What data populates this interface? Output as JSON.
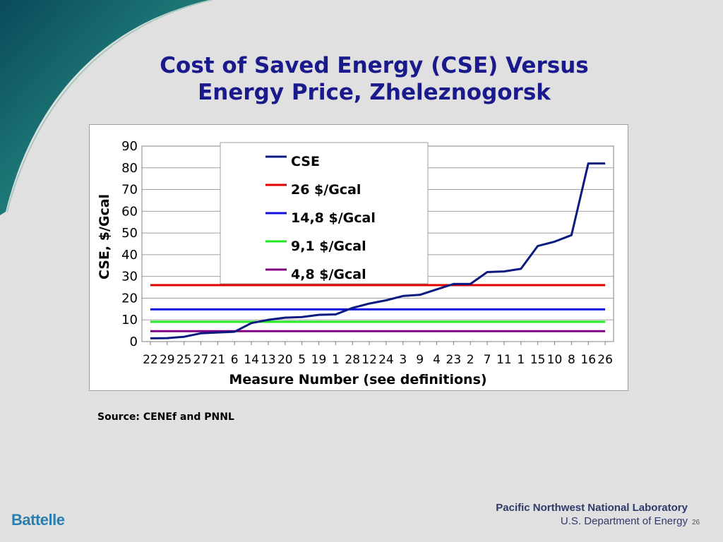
{
  "slide": {
    "title_line1": "Cost of Saved Energy (CSE) Versus",
    "title_line2": "Energy Price, Zheleznogorsk",
    "source": "Source: CENEf and PNNL",
    "logo_text": "Battelle",
    "lab_name": "Pacific Northwest National Laboratory",
    "department": "U.S. Department of Energy",
    "page_number": "26"
  },
  "colors": {
    "title": "#1a1a8c",
    "swoosh_dark": "#0a5a6a",
    "swoosh_light": "#3a9a8a",
    "background": "#e0e0e0"
  },
  "chart_data": {
    "type": "line",
    "title": "",
    "xlabel": "Measure Number (see definitions)",
    "ylabel": "CSE, $/Gcal",
    "ylim": [
      0,
      90
    ],
    "yticks": [
      "0",
      "10",
      "20",
      "30",
      "40",
      "50",
      "60",
      "70",
      "80",
      "90"
    ],
    "grid": true,
    "legend_position": "top-center",
    "categories": [
      "22",
      "29",
      "25",
      "27",
      "21",
      "6",
      "14",
      "13",
      "20",
      "5",
      "19",
      "1",
      "28",
      "12",
      "24",
      "3",
      "9",
      "4",
      "23",
      "2",
      "7",
      "11",
      "1",
      "15",
      "10",
      "8",
      "16",
      "26"
    ],
    "series": [
      {
        "name": "CSE",
        "color": "#0a1a80",
        "values": [
          1.5,
          1.6,
          2.2,
          3.8,
          4.2,
          4.5,
          8.5,
          10,
          11,
          11.3,
          12.3,
          12.5,
          15.5,
          17.5,
          19,
          21,
          21.5,
          24,
          26.5,
          26.5,
          32,
          32.3,
          33.5,
          44,
          46,
          49,
          82,
          82
        ]
      },
      {
        "name": "26 $/Gcal",
        "color": "#e00000",
        "values": [
          26,
          26,
          26,
          26,
          26,
          26,
          26,
          26,
          26,
          26,
          26,
          26,
          26,
          26,
          26,
          26,
          26,
          26,
          26,
          26,
          26,
          26,
          26,
          26,
          26,
          26,
          26,
          26
        ]
      },
      {
        "name": "14,8 $/Gcal",
        "color": "#1010e0",
        "values": [
          14.8,
          14.8,
          14.8,
          14.8,
          14.8,
          14.8,
          14.8,
          14.8,
          14.8,
          14.8,
          14.8,
          14.8,
          14.8,
          14.8,
          14.8,
          14.8,
          14.8,
          14.8,
          14.8,
          14.8,
          14.8,
          14.8,
          14.8,
          14.8,
          14.8,
          14.8,
          14.8,
          14.8
        ]
      },
      {
        "name": "9,1 $/Gcal",
        "color": "#22e822",
        "values": [
          9.1,
          9.1,
          9.1,
          9.1,
          9.1,
          9.1,
          9.1,
          9.1,
          9.1,
          9.1,
          9.1,
          9.1,
          9.1,
          9.1,
          9.1,
          9.1,
          9.1,
          9.1,
          9.1,
          9.1,
          9.1,
          9.1,
          9.1,
          9.1,
          9.1,
          9.1,
          9.1,
          9.1
        ]
      },
      {
        "name": "4,8 $/Gcal",
        "color": "#800080",
        "values": [
          4.8,
          4.8,
          4.8,
          4.8,
          4.8,
          4.8,
          4.8,
          4.8,
          4.8,
          4.8,
          4.8,
          4.8,
          4.8,
          4.8,
          4.8,
          4.8,
          4.8,
          4.8,
          4.8,
          4.8,
          4.8,
          4.8,
          4.8,
          4.8,
          4.8,
          4.8,
          4.8,
          4.8
        ]
      }
    ]
  }
}
